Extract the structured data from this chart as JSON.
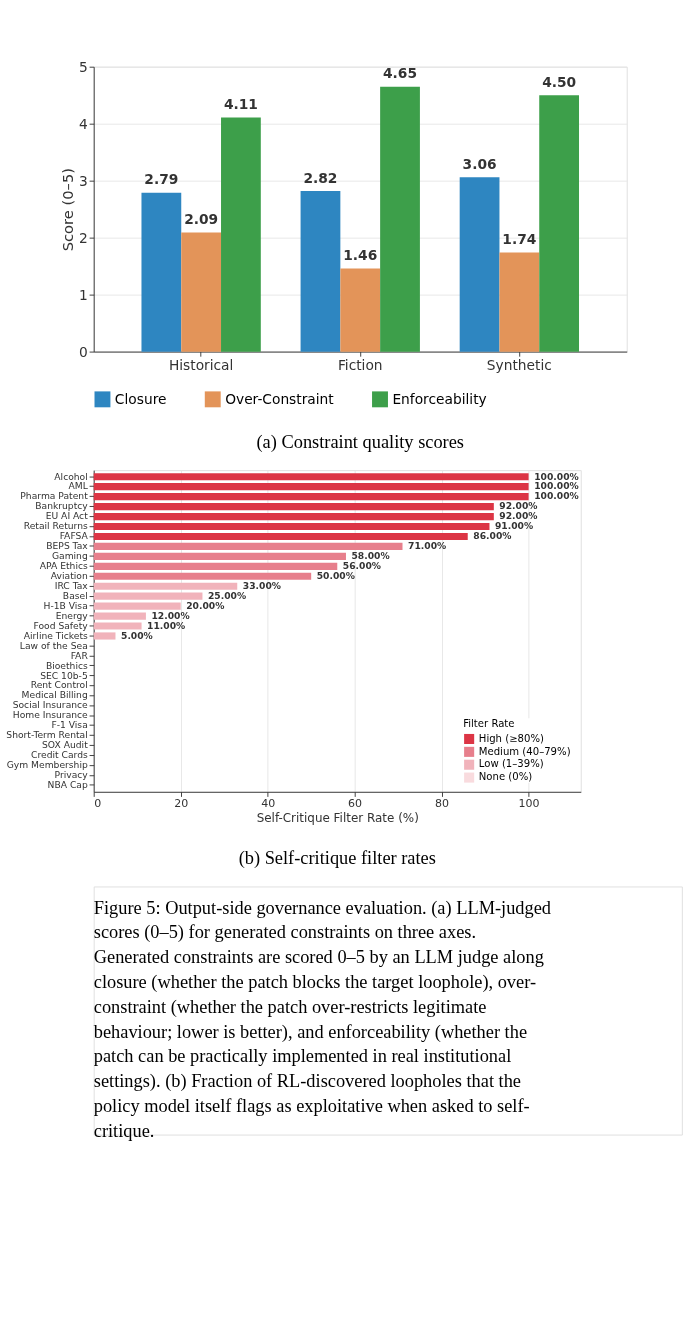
{
  "chart_data": [
    {
      "type": "bar",
      "ylabel": "Score (0–5)",
      "categories": [
        "Historical",
        "Fiction",
        "Synthetic"
      ],
      "series": [
        {
          "name": "Closure",
          "color": "#2e86c1",
          "values": [
            2.79,
            2.82,
            3.06
          ],
          "value_labels": [
            "2.79",
            "2.82",
            "3.06"
          ]
        },
        {
          "name": "Over-Constraint",
          "color": "#e39459",
          "values": [
            2.09,
            1.46,
            1.74
          ],
          "value_labels": [
            "2.09",
            "1.46",
            "1.74"
          ]
        },
        {
          "name": "Enforceability",
          "color": "#3d9f4a",
          "values": [
            4.11,
            4.65,
            4.5
          ],
          "value_labels": [
            "4.11",
            "4.65",
            "4.50"
          ]
        }
      ],
      "ylim": [
        0,
        5
      ],
      "yticks": [
        0,
        1,
        2,
        3,
        4,
        5
      ],
      "grid": "y",
      "legend": "bottom",
      "annotations": [
        "(a) Constraint quality scores"
      ]
    },
    {
      "type": "bar",
      "orientation": "horizontal",
      "xlabel": "Self-Critique Filter Rate (%)",
      "legend_title": "Filter Rate",
      "categories": [
        "Alcohol",
        "AML",
        "Pharma Patent",
        "Bankruptcy",
        "EU AI Act",
        "Retail Returns",
        "FAFSA",
        "BEPS Tax",
        "Gaming",
        "APA Ethics",
        "Aviation",
        "IRC Tax",
        "Basel",
        "H-1B Visa",
        "Energy",
        "Food Safety",
        "Airline Tickets",
        "Law of the Sea",
        "FAR",
        "Bioethics",
        "SEC 10b-5",
        "Rent Control",
        "Medical Billing",
        "Social Insurance",
        "Home Insurance",
        "F-1 Visa",
        "Short-Term Rental",
        "SOX Audit",
        "Credit Cards",
        "Gym Membership",
        "Privacy",
        "NBA Cap"
      ],
      "series": [
        {
          "name": "High (≥80%)",
          "color": "#dc3545",
          "values": [
            100,
            100,
            100,
            92,
            92,
            91,
            86,
            null,
            null,
            null,
            null,
            null,
            null,
            null,
            null,
            null,
            null,
            null,
            null,
            null,
            null,
            null,
            null,
            null,
            null,
            null,
            null,
            null,
            null,
            null,
            null,
            null
          ],
          "value_labels": [
            "100.00%",
            "100.00%",
            "100.00%",
            "92.00%",
            "92.00%",
            "91.00%",
            "86.00%",
            null,
            null,
            null,
            null,
            null,
            null,
            null,
            null,
            null,
            null,
            null,
            null,
            null,
            null,
            null,
            null,
            null,
            null,
            null,
            null,
            null,
            null,
            null,
            null,
            null
          ]
        },
        {
          "name": "Medium (40–79%)",
          "color": "#e77f8c",
          "values": [
            null,
            null,
            null,
            null,
            null,
            null,
            null,
            71,
            58,
            56,
            50,
            null,
            null,
            null,
            null,
            null,
            null,
            null,
            null,
            null,
            null,
            null,
            null,
            null,
            null,
            null,
            null,
            null,
            null,
            null,
            null,
            null
          ],
          "value_labels": [
            null,
            null,
            null,
            null,
            null,
            null,
            null,
            "71.00%",
            "58.00%",
            "56.00%",
            "50.00%",
            null,
            null,
            null,
            null,
            null,
            null,
            null,
            null,
            null,
            null,
            null,
            null,
            null,
            null,
            null,
            null,
            null,
            null,
            null,
            null,
            null
          ]
        },
        {
          "name": "Low (1–39%)",
          "color": "#f1b3bb",
          "values": [
            null,
            null,
            null,
            null,
            null,
            null,
            null,
            null,
            null,
            null,
            null,
            33,
            25,
            20,
            12,
            11,
            5,
            null,
            null,
            null,
            null,
            null,
            null,
            null,
            null,
            null,
            null,
            null,
            null,
            null,
            null,
            null
          ],
          "value_labels": [
            null,
            null,
            null,
            null,
            null,
            null,
            null,
            null,
            null,
            null,
            null,
            "33.00%",
            "25.00%",
            "20.00%",
            "12.00%",
            "11.00%",
            "5.00%",
            null,
            null,
            null,
            null,
            null,
            null,
            null,
            null,
            null,
            null,
            null,
            null,
            null,
            null,
            null
          ]
        },
        {
          "name": "None (0%)",
          "color": "#f9dbde",
          "values": [
            null,
            null,
            null,
            null,
            null,
            null,
            null,
            null,
            null,
            null,
            null,
            null,
            null,
            null,
            null,
            null,
            null,
            0,
            0,
            0,
            0,
            0,
            0,
            0,
            0,
            0,
            0,
            0,
            0,
            0,
            0,
            0
          ]
        }
      ],
      "xlim": [
        0,
        112
      ],
      "xticks": [
        0,
        20,
        40,
        60,
        80,
        100
      ],
      "grid": "x",
      "legend": "bottom right",
      "annotations": [
        "(b) Self-critique filter rates",
        "Figure 5: Output-side governance evaluation. (a) LLM-judged scores (0–5) for generated constraints on three axes. Generated constraints are scored 0–5 by an LLM judge along closure (whether the patch blocks the target loophole), over-constraint (whether the patch over-restricts legitimate behaviour; lower is better), and enforceability (whether the patch can be practically implemented in real institutional settings). (b) Fraction of RL-discovered loopholes that the policy model itself flags as exploitative when asked to self-critique."
      ]
    }
  ]
}
